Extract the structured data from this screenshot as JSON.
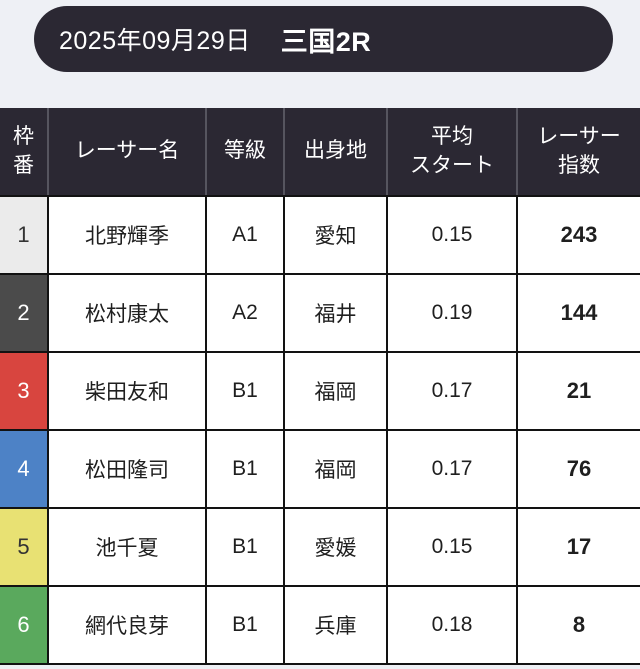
{
  "page": {
    "background": "#eef0f5"
  },
  "header": {
    "date": "2025年09月29日",
    "race": "三国2R",
    "background": "#2b2833",
    "text_color": "#ffffff"
  },
  "table": {
    "header_background": "#2b2833",
    "columns": [
      {
        "key": "frame",
        "label": "枠\n番"
      },
      {
        "key": "racer_name",
        "label": "レーサー名"
      },
      {
        "key": "grade",
        "label": "等級"
      },
      {
        "key": "origin",
        "label": "出身地"
      },
      {
        "key": "avg_start",
        "label": "平均\nスタート"
      },
      {
        "key": "racer_index",
        "label": "レーサー\n指数"
      }
    ],
    "rows": [
      {
        "frame": "1",
        "racer_name": "北野輝季",
        "grade": "A1",
        "origin": "愛知",
        "avg_start": "0.15",
        "racer_index": "243",
        "frame_bg": "#ebebeb",
        "frame_text": "#333333"
      },
      {
        "frame": "2",
        "racer_name": "松村康太",
        "grade": "A2",
        "origin": "福井",
        "avg_start": "0.19",
        "racer_index": "144",
        "frame_bg": "#4b4b4b",
        "frame_text": "#ffffff"
      },
      {
        "frame": "3",
        "racer_name": "柴田友和",
        "grade": "B1",
        "origin": "福岡",
        "avg_start": "0.17",
        "racer_index": "21",
        "frame_bg": "#d8453f",
        "frame_text": "#ffffff"
      },
      {
        "frame": "4",
        "racer_name": "松田隆司",
        "grade": "B1",
        "origin": "福岡",
        "avg_start": "0.17",
        "racer_index": "76",
        "frame_bg": "#4d82c6",
        "frame_text": "#ffffff"
      },
      {
        "frame": "5",
        "racer_name": "池千夏",
        "grade": "B1",
        "origin": "愛媛",
        "avg_start": "0.15",
        "racer_index": "17",
        "frame_bg": "#e8e173",
        "frame_text": "#333333"
      },
      {
        "frame": "6",
        "racer_name": "網代良芽",
        "grade": "B1",
        "origin": "兵庫",
        "avg_start": "0.18",
        "racer_index": "8",
        "frame_bg": "#5aa95d",
        "frame_text": "#ffffff"
      }
    ]
  }
}
